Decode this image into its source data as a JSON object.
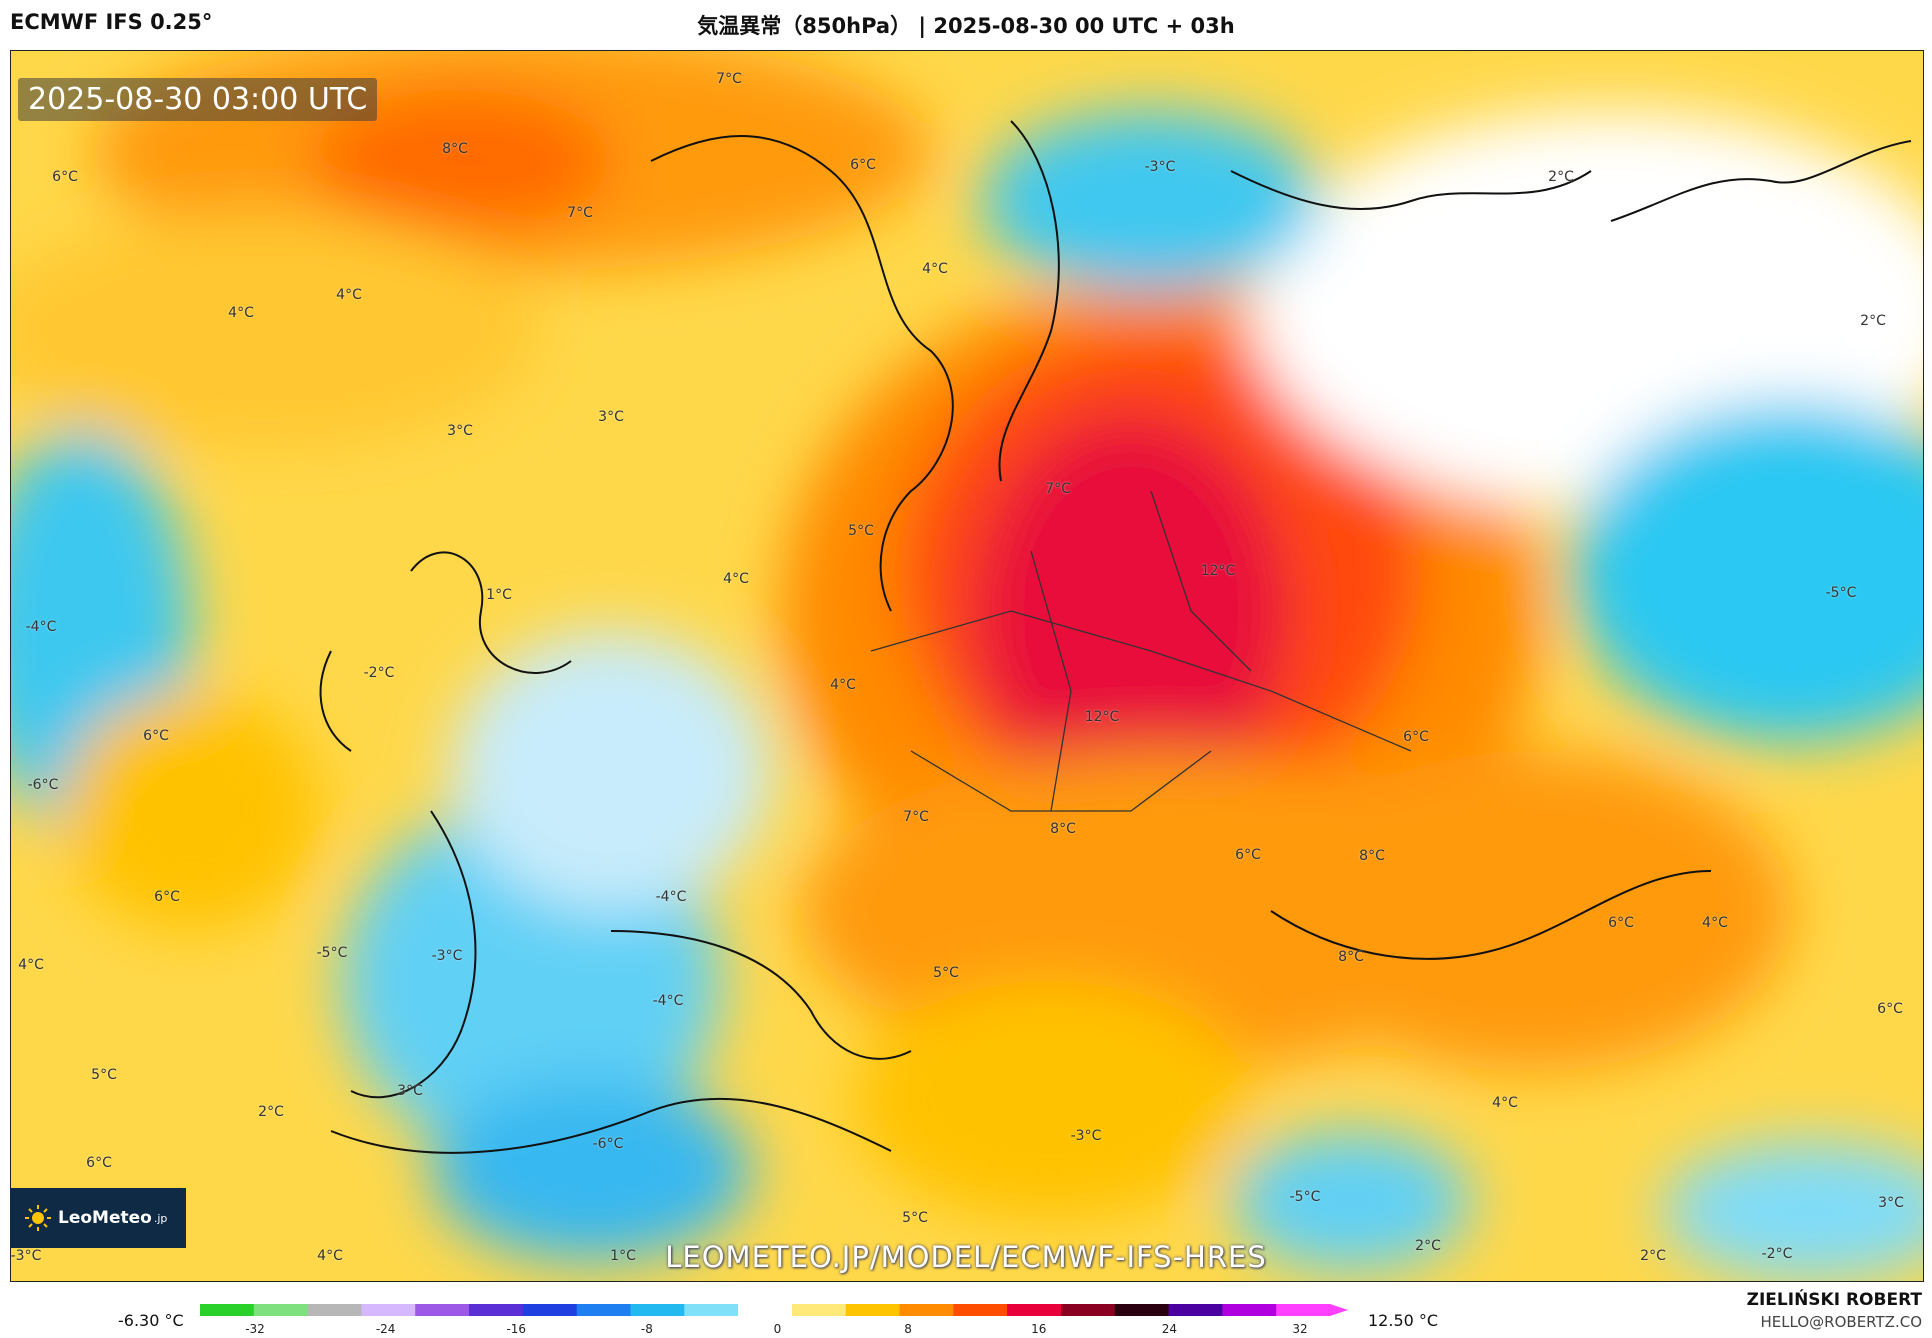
{
  "header": {
    "model": "ECMWF IFS 0.25°",
    "title": "気温異常（850hPa） | 2025-08-30 00 UTC + 03h"
  },
  "map": {
    "timestamp": "2025-08-30 03:00 UTC",
    "watermark": "LEOMETEO.JP/MODEL/ECMWF-IFS-HRES",
    "logo_text": "LeoMeteo",
    "logo_suffix": ".jp",
    "labels": [
      {
        "t": "7°C"
      },
      {
        "t": "8°C"
      },
      {
        "t": "6°C"
      },
      {
        "t": "7°C"
      },
      {
        "t": "6°C"
      },
      {
        "t": "-3°C"
      },
      {
        "t": "2°C"
      },
      {
        "t": "4°C"
      },
      {
        "t": "4°C"
      },
      {
        "t": "4°C"
      },
      {
        "t": "2°C"
      },
      {
        "t": "3°C"
      },
      {
        "t": "3°C"
      },
      {
        "t": "7°C"
      },
      {
        "t": "5°C"
      },
      {
        "t": "4°C"
      },
      {
        "t": "1°C"
      },
      {
        "t": "12°C"
      },
      {
        "t": "-5°C"
      },
      {
        "t": "-4°C"
      },
      {
        "t": "-2°C"
      },
      {
        "t": "4°C"
      },
      {
        "t": "12°C"
      },
      {
        "t": "6°C"
      },
      {
        "t": "6°C"
      },
      {
        "t": "-6°C"
      },
      {
        "t": "7°C"
      },
      {
        "t": "8°C"
      },
      {
        "t": "6°C"
      },
      {
        "t": "8°C"
      },
      {
        "t": "-4°C"
      },
      {
        "t": "6°C"
      },
      {
        "t": "6°C"
      },
      {
        "t": "4°C"
      },
      {
        "t": "-5°C"
      },
      {
        "t": "-3°C"
      },
      {
        "t": "-4°C"
      },
      {
        "t": "4°C"
      },
      {
        "t": "5°C"
      },
      {
        "t": "8°C"
      },
      {
        "t": "6°C"
      },
      {
        "t": "5°C"
      },
      {
        "t": "3°C"
      },
      {
        "t": "2°C"
      },
      {
        "t": "-6°C"
      },
      {
        "t": "-3°C"
      },
      {
        "t": "4°C"
      },
      {
        "t": "6°C"
      },
      {
        "t": "-5°C"
      },
      {
        "t": "5°C"
      },
      {
        "t": "3°C"
      },
      {
        "t": "-3°C"
      },
      {
        "t": "4°C"
      },
      {
        "t": "1°C"
      },
      {
        "t": "2°C"
      },
      {
        "t": "2°C"
      },
      {
        "t": "-2°C"
      }
    ]
  },
  "legend": {
    "min_value": "-6.30 °C",
    "max_value": "12.50 °C",
    "ticks": [
      "-32",
      "-24",
      "-16",
      "-8",
      "0",
      "8",
      "16",
      "24",
      "32"
    ],
    "colors": [
      "#2bd12b",
      "#7fe07f",
      "#b7b7b7",
      "#d6b8ff",
      "#9b59e6",
      "#5b2fd6",
      "#1f3fe0",
      "#1e7ff0",
      "#22b8f0",
      "#7fe0f8",
      "#ffffff",
      "#ffe97a",
      "#ffc400",
      "#ff8c00",
      "#ff4d00",
      "#e8003a",
      "#8a0020",
      "#2a0010",
      "#4b00a0",
      "#b000e0",
      "#ff40ff"
    ]
  },
  "credit": {
    "name": "ZIELIŃSKI ROBERT",
    "email": "HELLO@ROBERTZ.CO"
  }
}
